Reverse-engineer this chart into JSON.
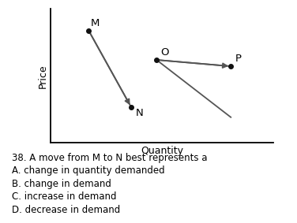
{
  "xlabel": "Quantity",
  "ylabel": "Price",
  "M": [
    0.18,
    0.88
  ],
  "N": [
    0.38,
    0.28
  ],
  "O": [
    0.5,
    0.65
  ],
  "P": [
    0.85,
    0.6
  ],
  "line_color": "#555555",
  "dot_color": "#111111",
  "question_lines": [
    "38. A move from M to N best represents a",
    "A. change in quantity demanded",
    "B. change in demand",
    "C. increase in demand",
    "D. decrease in demand"
  ],
  "question_fontsize": 8.5,
  "axis_label_fontsize": 9,
  "point_label_fontsize": 9.5
}
